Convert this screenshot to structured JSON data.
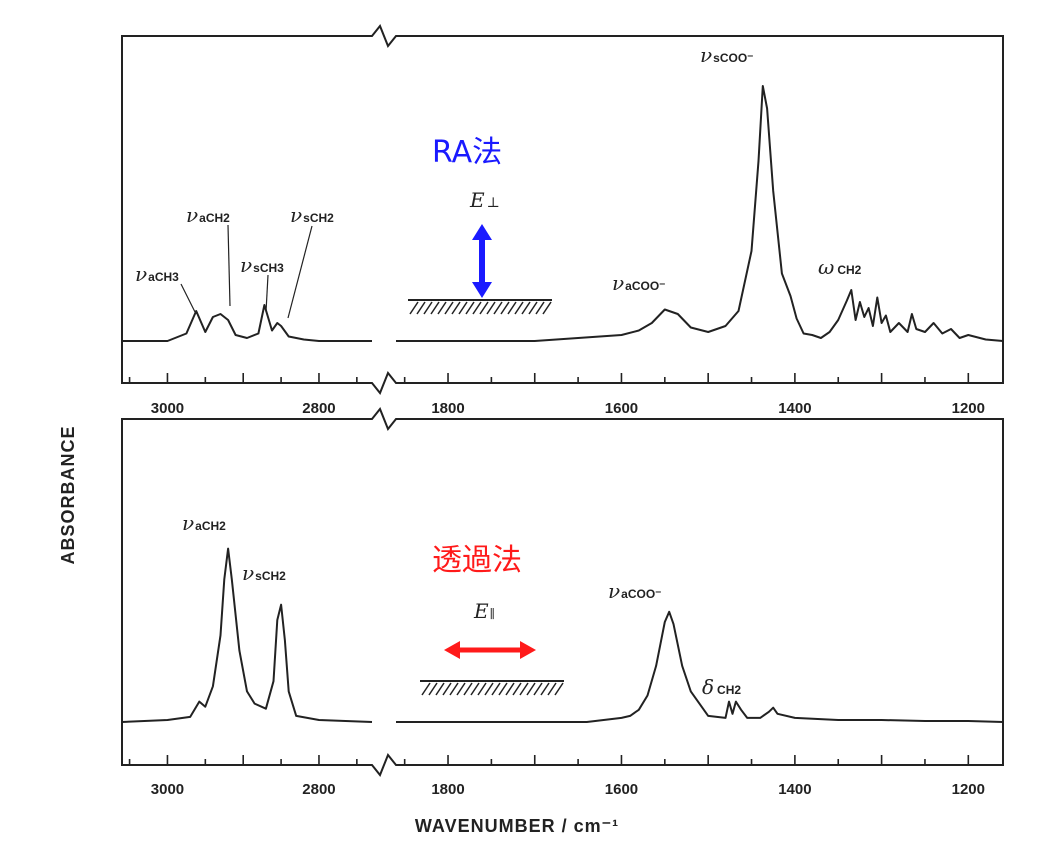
{
  "chart_data": [
    {
      "type": "line",
      "panel": "top",
      "method_label": "RA法",
      "method_color": "#1a1aff",
      "field_label": "E",
      "field_symbol": "⊥",
      "field_arrow_color": "#1a1aff",
      "xlabel": "",
      "ylabel": "ABSORBANCE",
      "x_axis_break": [
        2730,
        1860
      ],
      "x_ranges": [
        [
          3060,
          2730
        ],
        [
          1860,
          1160
        ]
      ],
      "x_tick_labels": [
        "3000",
        "2800",
        "1800",
        "1600",
        "1400",
        "1200"
      ],
      "annotations": [
        {
          "symbol": "ν",
          "sub": "aCH3"
        },
        {
          "symbol": "ν",
          "sub": "aCH2"
        },
        {
          "symbol": "ν",
          "sub": "sCH3"
        },
        {
          "symbol": "ν",
          "sub": "sCH2"
        },
        {
          "symbol": "ν",
          "sub": "aCOO⁻"
        },
        {
          "symbol": "ν",
          "sub": "sCOO⁻"
        },
        {
          "symbol": "ω",
          "sub": "CH2"
        }
      ],
      "series": [
        {
          "x": [
            3060,
            3000,
            2975,
            2962,
            2950,
            2940,
            2930,
            2920,
            2910,
            2895,
            2880,
            2872,
            2862,
            2855,
            2850,
            2840,
            2820,
            2800,
            2760,
            2730,
            1860,
            1800,
            1700,
            1650,
            1600,
            1580,
            1565,
            1550,
            1535,
            1520,
            1500,
            1480,
            1465,
            1450,
            1442,
            1437,
            1432,
            1425,
            1415,
            1405,
            1398,
            1390,
            1380,
            1370,
            1360,
            1350,
            1340,
            1335,
            1330,
            1325,
            1320,
            1315,
            1310,
            1305,
            1300,
            1295,
            1290,
            1280,
            1270,
            1265,
            1260,
            1250,
            1240,
            1230,
            1220,
            1210,
            1200,
            1180,
            1160
          ],
          "y": [
            0.0,
            0.0,
            0.05,
            0.2,
            0.06,
            0.16,
            0.18,
            0.14,
            0.04,
            0.02,
            0.05,
            0.24,
            0.07,
            0.12,
            0.1,
            0.03,
            0.01,
            0.0,
            0.0,
            0.0,
            0.0,
            0.0,
            0.0,
            0.02,
            0.04,
            0.07,
            0.12,
            0.21,
            0.18,
            0.09,
            0.06,
            0.1,
            0.2,
            0.6,
            1.2,
            1.7,
            1.55,
            1.0,
            0.45,
            0.3,
            0.15,
            0.05,
            0.04,
            0.02,
            0.06,
            0.14,
            0.27,
            0.34,
            0.14,
            0.26,
            0.16,
            0.22,
            0.1,
            0.29,
            0.12,
            0.17,
            0.06,
            0.12,
            0.06,
            0.18,
            0.08,
            0.06,
            0.12,
            0.05,
            0.08,
            0.02,
            0.04,
            0.01,
            0.0
          ]
        }
      ]
    },
    {
      "type": "line",
      "panel": "bottom",
      "method_label": "透過法",
      "method_color": "#ff1a1a",
      "field_label": "E",
      "field_symbol": "∥",
      "field_arrow_color": "#ff1a1a",
      "xlabel": "WAVENUMBER  /  cm⁻¹",
      "ylabel": "ABSORBANCE",
      "x_axis_break": [
        2730,
        1860
      ],
      "x_ranges": [
        [
          3060,
          2730
        ],
        [
          1860,
          1160
        ]
      ],
      "x_tick_labels": [
        "3000",
        "2800",
        "1800",
        "1600",
        "1400",
        "1200"
      ],
      "annotations": [
        {
          "symbol": "ν",
          "sub": "aCH2"
        },
        {
          "symbol": "ν",
          "sub": "sCH2"
        },
        {
          "symbol": "ν",
          "sub": "aCOO⁻"
        },
        {
          "symbol": "δ",
          "sub": "CH2"
        }
      ],
      "series": [
        {
          "x": [
            3060,
            3000,
            2970,
            2958,
            2950,
            2940,
            2930,
            2925,
            2920,
            2915,
            2905,
            2895,
            2885,
            2870,
            2860,
            2855,
            2850,
            2845,
            2840,
            2830,
            2800,
            2730,
            1860,
            1800,
            1700,
            1640,
            1600,
            1590,
            1580,
            1570,
            1560,
            1550,
            1545,
            1540,
            1530,
            1520,
            1500,
            1480,
            1476,
            1472,
            1468,
            1462,
            1455,
            1440,
            1430,
            1425,
            1420,
            1400,
            1350,
            1300,
            1250,
            1200,
            1160
          ],
          "y": [
            0.0,
            0.02,
            0.05,
            0.2,
            0.15,
            0.35,
            0.85,
            1.4,
            1.7,
            1.4,
            0.7,
            0.3,
            0.18,
            0.13,
            0.4,
            1.0,
            1.15,
            0.8,
            0.3,
            0.06,
            0.02,
            0.0,
            0.0,
            0.0,
            0.0,
            0.0,
            0.04,
            0.06,
            0.12,
            0.26,
            0.55,
            0.98,
            1.08,
            0.96,
            0.55,
            0.3,
            0.06,
            0.04,
            0.2,
            0.08,
            0.2,
            0.12,
            0.04,
            0.04,
            0.1,
            0.14,
            0.08,
            0.04,
            0.02,
            0.02,
            0.01,
            0.01,
            0.0
          ]
        }
      ]
    }
  ]
}
